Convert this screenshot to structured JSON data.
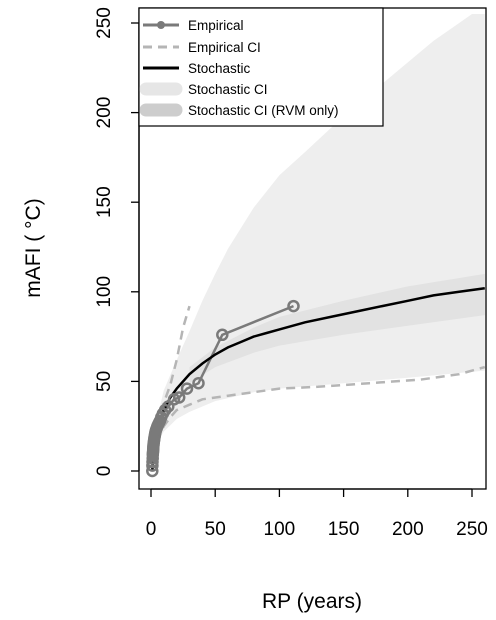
{
  "chart_data": {
    "type": "line",
    "xlabel": "RP (years)",
    "ylabel": "mAFI ( °C)",
    "xlim": [
      -10,
      260
    ],
    "ylim": [
      -10,
      255
    ],
    "x_ticks": [
      0,
      50,
      100,
      150,
      200,
      250
    ],
    "y_ticks": [
      0,
      50,
      100,
      150,
      200,
      250
    ],
    "x_tick_labels": [
      "0",
      "50",
      "100",
      "150",
      "200",
      "250"
    ],
    "y_tick_labels": [
      "0",
      "50",
      "100",
      "150",
      "200",
      "250"
    ],
    "legend_position": "top-left",
    "legend": [
      {
        "label": "Empirical",
        "style": "line-points"
      },
      {
        "label": "Empirical CI",
        "style": "dashed"
      },
      {
        "label": "Stochastic",
        "style": "line"
      },
      {
        "label": "Stochastic CI",
        "style": "band"
      },
      {
        "label": "Stochastic CI (RVM only)",
        "style": "band"
      }
    ],
    "series": [
      {
        "name": "Empirical",
        "color": "#7a7a7a",
        "points": [
          [
            1.0,
            0
          ],
          [
            1.1,
            3
          ],
          [
            1.2,
            5
          ],
          [
            1.3,
            7
          ],
          [
            1.4,
            9
          ],
          [
            1.5,
            10
          ],
          [
            1.6,
            11
          ],
          [
            1.7,
            12
          ],
          [
            1.8,
            13
          ],
          [
            1.9,
            14
          ],
          [
            2.0,
            15
          ],
          [
            2.2,
            16
          ],
          [
            2.4,
            17
          ],
          [
            2.6,
            18
          ],
          [
            2.8,
            19
          ],
          [
            3.0,
            20
          ],
          [
            3.3,
            21
          ],
          [
            3.6,
            22
          ],
          [
            4.0,
            23
          ],
          [
            4.5,
            24
          ],
          [
            5.0,
            25
          ],
          [
            5.6,
            26
          ],
          [
            6.3,
            27
          ],
          [
            7.0,
            28
          ],
          [
            8.0,
            30
          ],
          [
            9.3,
            32
          ],
          [
            11.0,
            34
          ],
          [
            13.5,
            36
          ],
          [
            18.0,
            40
          ],
          [
            22.0,
            41
          ],
          [
            28.0,
            46
          ],
          [
            37.0,
            49
          ],
          [
            55.5,
            76
          ],
          [
            111.0,
            92
          ]
        ]
      },
      {
        "name": "Empirical CI",
        "color": "#b5b5b5",
        "lower": [
          [
            1,
            0
          ],
          [
            3,
            14
          ],
          [
            6,
            20
          ],
          [
            10,
            25
          ],
          [
            15,
            30
          ],
          [
            20,
            34
          ],
          [
            30,
            37
          ],
          [
            40,
            40
          ],
          [
            60,
            42
          ],
          [
            80,
            44
          ],
          [
            100,
            46
          ],
          [
            130,
            47
          ],
          [
            170,
            49
          ],
          [
            210,
            51
          ],
          [
            240,
            54
          ],
          [
            260,
            58
          ]
        ],
        "upper": [
          [
            1,
            0
          ],
          [
            3,
            18
          ],
          [
            6,
            28
          ],
          [
            10,
            38
          ],
          [
            15,
            48
          ],
          [
            20,
            62
          ],
          [
            25,
            80
          ],
          [
            30,
            92
          ]
        ]
      },
      {
        "name": "Stochastic",
        "color": "#000000",
        "points": [
          [
            1,
            0
          ],
          [
            2,
            12
          ],
          [
            3,
            17
          ],
          [
            5,
            23
          ],
          [
            7,
            28
          ],
          [
            10,
            34
          ],
          [
            15,
            41
          ],
          [
            20,
            46
          ],
          [
            30,
            54
          ],
          [
            40,
            60
          ],
          [
            50,
            65
          ],
          [
            60,
            69
          ],
          [
            70,
            72
          ],
          [
            80,
            75
          ],
          [
            90,
            77
          ],
          [
            100,
            79
          ],
          [
            120,
            83
          ],
          [
            140,
            86
          ],
          [
            160,
            89
          ],
          [
            180,
            92
          ],
          [
            200,
            95
          ],
          [
            220,
            98
          ],
          [
            240,
            100
          ],
          [
            260,
            102
          ]
        ]
      },
      {
        "name": "Stochastic CI",
        "color": "#eeeeee",
        "lower": [
          [
            1,
            0
          ],
          [
            5,
            16
          ],
          [
            10,
            22
          ],
          [
            20,
            29
          ],
          [
            30,
            33
          ],
          [
            50,
            39
          ],
          [
            80,
            44
          ],
          [
            100,
            46
          ],
          [
            150,
            49
          ],
          [
            200,
            52
          ],
          [
            260,
            56
          ]
        ],
        "upper": [
          [
            1,
            0
          ],
          [
            5,
            30
          ],
          [
            10,
            45
          ],
          [
            20,
            62
          ],
          [
            30,
            78
          ],
          [
            40,
            95
          ],
          [
            50,
            110
          ],
          [
            60,
            124
          ],
          [
            80,
            147
          ],
          [
            100,
            165
          ],
          [
            120,
            178
          ],
          [
            150,
            198
          ],
          [
            180,
            216
          ],
          [
            200,
            228
          ],
          [
            220,
            240
          ],
          [
            240,
            250
          ],
          [
            250,
            255
          ],
          [
            260,
            255
          ]
        ]
      },
      {
        "name": "Stochastic CI (RVM only)",
        "color": "#e2e2e2",
        "lower": [
          [
            30,
            49
          ],
          [
            50,
            58
          ],
          [
            80,
            66
          ],
          [
            100,
            70
          ],
          [
            150,
            76
          ],
          [
            200,
            81
          ],
          [
            260,
            87
          ]
        ],
        "upper": [
          [
            30,
            58
          ],
          [
            50,
            69
          ],
          [
            80,
            80
          ],
          [
            100,
            86
          ],
          [
            150,
            95
          ],
          [
            200,
            103
          ],
          [
            260,
            110
          ]
        ]
      }
    ]
  }
}
